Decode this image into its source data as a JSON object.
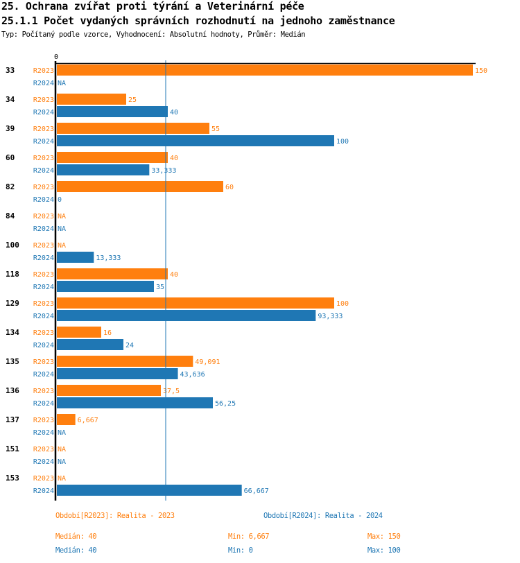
{
  "header": {
    "title": "25. Ochrana zvířat proti týrání a Veterinární péče",
    "subtitle": "25.1.1 Počet vydaných správních rozhodnutí na jednoho zaměstnance",
    "info": "Typ: Počítaný podle vzorce, Vyhodnocení: Absolutní hodnoty, Průměr: Medián"
  },
  "chart_data": {
    "type": "bar",
    "orientation": "horizontal",
    "title": "25.1.1 Počet vydaných správních rozhodnutí na jednoho zaměstnance",
    "xlabel": "",
    "ylabel": "",
    "x_tick_labels": [
      "0"
    ],
    "xlim": [
      0,
      150
    ],
    "reference_line": {
      "label": "Medián",
      "value": 40
    },
    "categories": [
      "33",
      "34",
      "39",
      "60",
      "82",
      "84",
      "100",
      "118",
      "129",
      "134",
      "135",
      "136",
      "137",
      "151",
      "153"
    ],
    "series": [
      {
        "name": "R2023",
        "color": "#ff7f0e",
        "values": [
          150,
          25,
          55,
          40,
          60,
          null,
          null,
          40,
          100,
          16,
          49.091,
          37.5,
          6.667,
          null,
          null
        ],
        "labels": [
          "150",
          "25",
          "55",
          "40",
          "60",
          "NA",
          "NA",
          "40",
          "100",
          "16",
          "49,091",
          "37,5",
          "6,667",
          "NA",
          "NA"
        ]
      },
      {
        "name": "R2024",
        "color": "#1f77b4",
        "values": [
          null,
          40,
          100,
          33.333,
          0,
          null,
          13.333,
          35,
          93.333,
          24,
          43.636,
          56.25,
          null,
          null,
          66.667
        ],
        "labels": [
          "NA",
          "40",
          "100",
          "33,333",
          "0",
          "NA",
          "13,333",
          "35",
          "93,333",
          "24",
          "43,636",
          "56,25",
          "NA",
          "NA",
          "66,667"
        ]
      }
    ]
  },
  "legend": {
    "period_2023": "Období[R2023]: Realita - 2023",
    "period_2024": "Období[R2024]: Realita - 2024",
    "stats_2023": {
      "median": "Medián: 40",
      "min": "Min: 6,667",
      "max": "Max: 150"
    },
    "stats_2024": {
      "median": "Medián: 40",
      "min": "Min: 0",
      "max": "Max: 100"
    }
  }
}
